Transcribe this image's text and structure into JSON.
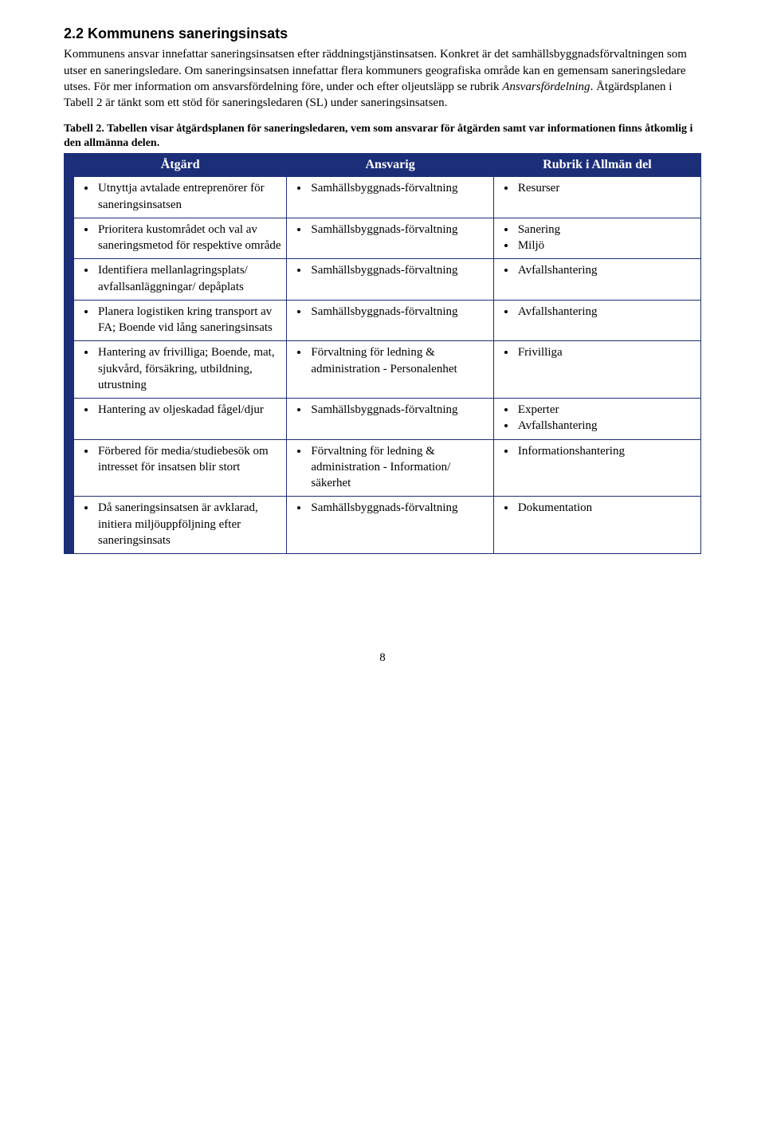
{
  "heading": "2.2 Kommunens saneringsinsats",
  "paragraph1": "Kommunens ansvar innefattar saneringsinsatsen efter räddningstjänstinsatsen. Konkret är det samhällsbyggnadsförvaltningen som utser en saneringsledare. Om saneringsinsatsen innefattar flera kommuners geografiska område kan en gemensam saneringsledare utses. För mer information om ansvarsfördelning före, under och efter oljeutsläpp se rubrik ",
  "paragraph1_italic": "Ansvarsfördelning",
  "paragraph1_tail": ". Åtgärdsplanen i Tabell 2 är tänkt som ett stöd för saneringsledaren (SL) under saneringsinsatsen.",
  "caption": "Tabell 2. Tabellen visar åtgärdsplanen för saneringsledaren, vem som ansvarar för åtgärden samt var informationen finns åtkomlig i den allmänna delen.",
  "columns": {
    "c1": "Åtgärd",
    "c2": "Ansvarig",
    "c3": "Rubrik i Allmän del"
  },
  "rows": [
    {
      "action": [
        "Utnyttja avtalade entreprenörer för saneringsinsatsen"
      ],
      "responsible": [
        "Samhällsbyggnads-förvaltning"
      ],
      "rubric": [
        "Resurser"
      ]
    },
    {
      "action": [
        "Prioritera kustområdet och val av saneringsmetod för respektive område"
      ],
      "responsible": [
        "Samhällsbyggnads-förvaltning"
      ],
      "rubric": [
        "Sanering",
        "Miljö"
      ]
    },
    {
      "action": [
        "Identifiera mellanlagringsplats/ avfallsanläggningar/ depåplats"
      ],
      "responsible": [
        "Samhällsbyggnads-förvaltning"
      ],
      "rubric": [
        "Avfallshantering"
      ]
    },
    {
      "action": [
        "Planera logistiken kring transport av FA; Boende vid lång saneringsinsats"
      ],
      "responsible": [
        "Samhällsbyggnads-förvaltning"
      ],
      "rubric": [
        "Avfallshantering"
      ]
    },
    {
      "action": [
        "Hantering av frivilliga; Boende, mat, sjukvård, försäkring, utbildning, utrustning"
      ],
      "responsible": [
        "Förvaltning för ledning & administration - Personalenhet"
      ],
      "rubric": [
        "Frivilliga"
      ]
    },
    {
      "action": [
        "Hantering av oljeskadad fågel/djur"
      ],
      "responsible": [
        "Samhällsbyggnads-förvaltning"
      ],
      "rubric": [
        "Experter",
        "Avfallshantering"
      ]
    },
    {
      "action": [
        "Förbered för media/studiebesök om intresset för insatsen blir stort"
      ],
      "responsible": [
        "Förvaltning för ledning & administration - Information/ säkerhet"
      ],
      "rubric": [
        "Informationshantering"
      ]
    },
    {
      "action": [
        "Då saneringsinsatsen är avklarad, initiera miljöuppföljning efter saneringsinsats"
      ],
      "responsible": [
        "Samhällsbyggnads-förvaltning"
      ],
      "rubric": [
        "Dokumentation"
      ]
    }
  ],
  "pageNumber": "8",
  "colors": {
    "headerBg": "#1c2e78",
    "headerText": "#ffffff",
    "border": "#1c2e78",
    "bodyText": "#000000",
    "pageBg": "#ffffff"
  }
}
